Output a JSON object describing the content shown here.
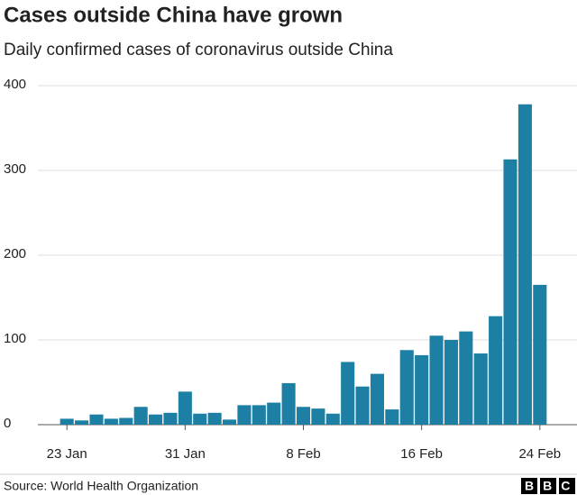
{
  "chart_data": {
    "type": "bar",
    "title": "Cases outside China have grown",
    "subtitle": "Daily confirmed cases of coronavirus outside China",
    "categories": [
      "23 Jan",
      null,
      null,
      null,
      null,
      null,
      null,
      null,
      "31 Jan",
      null,
      null,
      null,
      null,
      null,
      null,
      null,
      "8 Feb",
      null,
      null,
      null,
      null,
      null,
      null,
      null,
      "16 Feb",
      null,
      null,
      null,
      null,
      null,
      null,
      null,
      "24 Feb"
    ],
    "values": [
      7,
      5,
      12,
      7,
      8,
      21,
      12,
      14,
      39,
      13,
      14,
      6,
      23,
      23,
      26,
      49,
      21,
      19,
      13,
      74,
      45,
      60,
      18,
      88,
      82,
      105,
      100,
      110,
      84,
      128,
      313,
      378,
      165
    ],
    "color": "#1d7fa3",
    "ylim": [
      0,
      400
    ],
    "yticks": [
      0,
      100,
      200,
      300,
      400
    ],
    "grid": true,
    "source": "Source: World Health Organization",
    "logo": "BBC"
  }
}
